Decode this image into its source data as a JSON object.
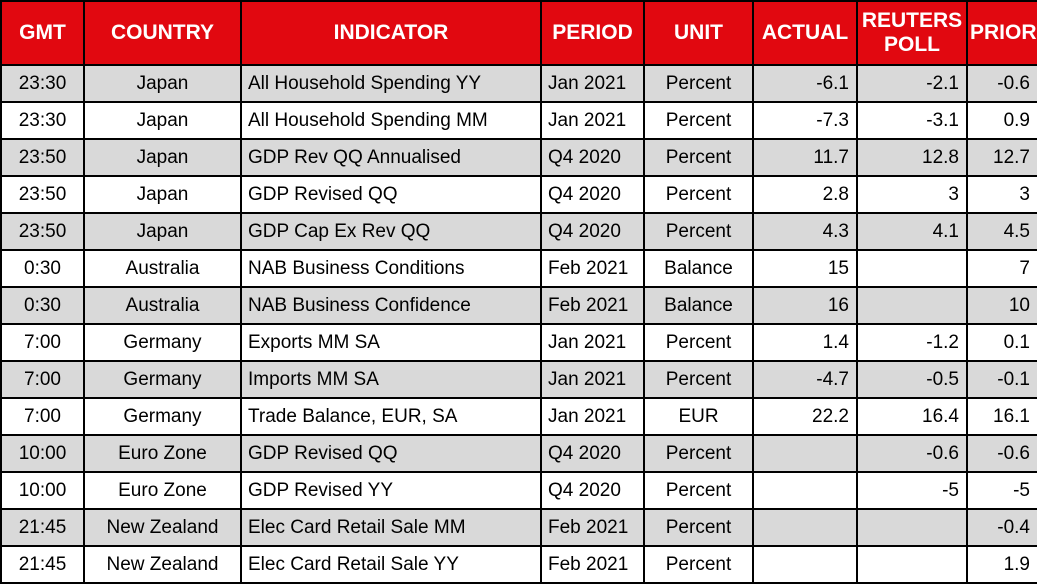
{
  "chart_data": {
    "type": "table",
    "columns": [
      "GMT",
      "COUNTRY",
      "INDICATOR",
      "PERIOD",
      "UNIT",
      "ACTUAL",
      "REUTERS POLL",
      "PRIOR"
    ],
    "rows": [
      [
        "23:30",
        "Japan",
        "All Household Spending YY",
        "Jan 2021",
        "Percent",
        "-6.1",
        "-2.1",
        "-0.6"
      ],
      [
        "23:30",
        "Japan",
        "All Household Spending MM",
        "Jan 2021",
        "Percent",
        "-7.3",
        "-3.1",
        "0.9"
      ],
      [
        "23:50",
        "Japan",
        "GDP Rev QQ Annualised",
        "Q4 2020",
        "Percent",
        "11.7",
        "12.8",
        "12.7"
      ],
      [
        "23:50",
        "Japan",
        "GDP Revised QQ",
        "Q4 2020",
        "Percent",
        "2.8",
        "3",
        "3"
      ],
      [
        "23:50",
        "Japan",
        "GDP Cap Ex Rev QQ",
        "Q4 2020",
        "Percent",
        "4.3",
        "4.1",
        "4.5"
      ],
      [
        "0:30",
        "Australia",
        "NAB Business Conditions",
        "Feb 2021",
        "Balance",
        "15",
        "",
        "7"
      ],
      [
        "0:30",
        "Australia",
        "NAB Business Confidence",
        "Feb 2021",
        "Balance",
        "16",
        "",
        "10"
      ],
      [
        "7:00",
        "Germany",
        "Exports MM SA",
        "Jan 2021",
        "Percent",
        "1.4",
        "-1.2",
        "0.1"
      ],
      [
        "7:00",
        "Germany",
        "Imports MM SA",
        "Jan 2021",
        "Percent",
        "-4.7",
        "-0.5",
        "-0.1"
      ],
      [
        "7:00",
        "Germany",
        "Trade Balance, EUR, SA",
        "Jan 2021",
        "EUR",
        "22.2",
        "16.4",
        "16.1"
      ],
      [
        "10:00",
        "Euro Zone",
        "GDP Revised QQ",
        "Q4 2020",
        "Percent",
        "",
        "-0.6",
        "-0.6"
      ],
      [
        "10:00",
        "Euro Zone",
        "GDP Revised YY",
        "Q4 2020",
        "Percent",
        "",
        "-5",
        "-5"
      ],
      [
        "21:45",
        "New Zealand",
        "Elec Card Retail Sale MM",
        "Feb 2021",
        "Percent",
        "",
        "",
        "-0.4"
      ],
      [
        "21:45",
        "New Zealand",
        "Elec Card Retail Sale YY",
        "Feb 2021",
        "Percent",
        "",
        "",
        "1.9"
      ]
    ]
  },
  "colors": {
    "header_bg": "#E10810",
    "header_text": "#FFFFFF",
    "row_bg": "#FFFFFF",
    "row_alt_bg": "#D9D9D9",
    "border": "#000000",
    "text": "#000000"
  }
}
